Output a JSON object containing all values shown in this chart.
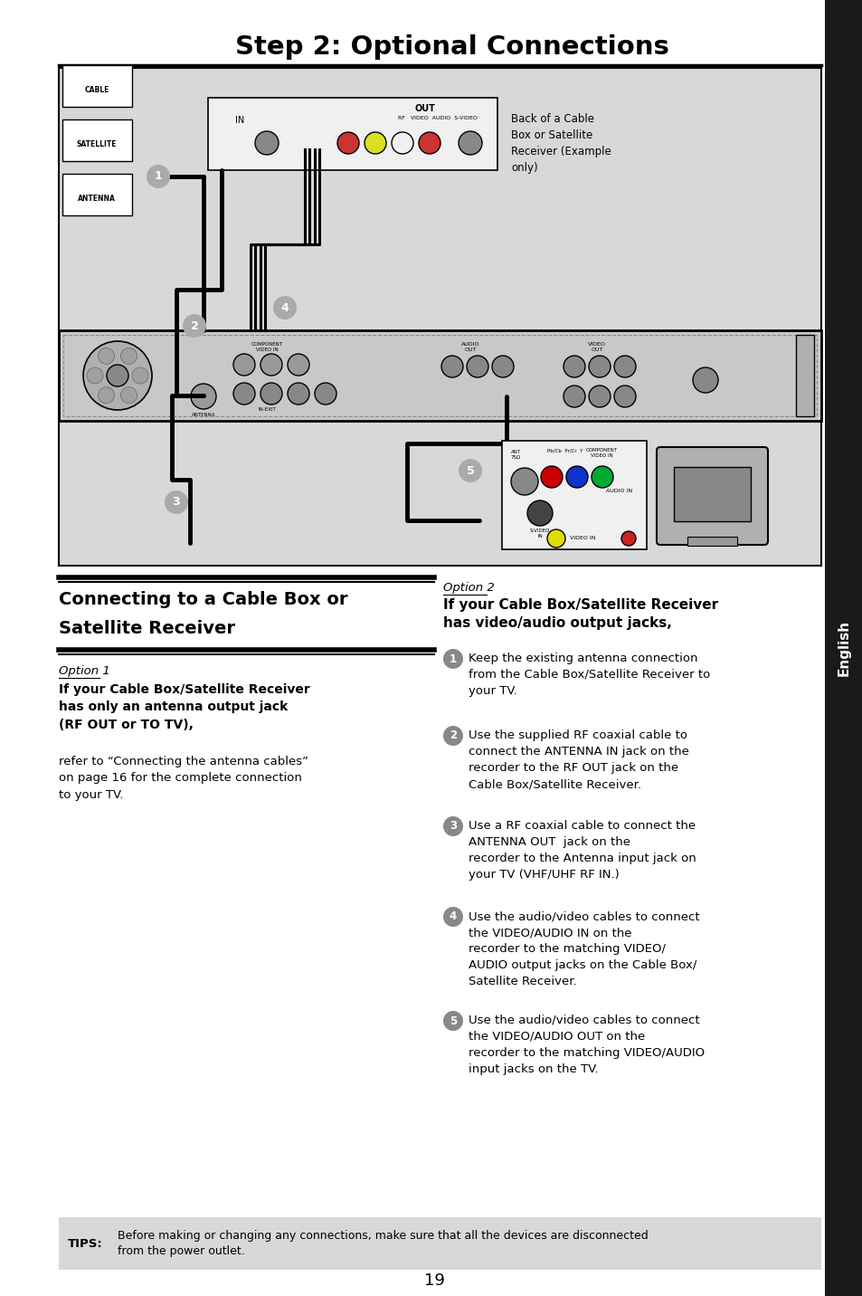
{
  "title": "Step 2: Optional Connections",
  "page_number": "19",
  "bg_color": "#ffffff",
  "diagram_bg": "#d8d8d8",
  "sidebar_text": "English",
  "sidebar_color": "#1a1a1a",
  "sidebar_text_color": "#ffffff",
  "section_title_line1": "Connecting to a Cable Box or",
  "section_title_line2": "Satellite Receiver",
  "option1_label": "Option 1",
  "option1_heading": "If your Cable Box/Satellite Receiver\nhas only an antenna output jack\n(RF OUT or TO TV),",
  "option1_body": "refer to “Connecting the antenna cables”\non page 16 for the complete connection\nto your TV.",
  "option2_label": "Option 2",
  "option2_heading_bold": "If your Cable Box/Satellite Receiver\nhas video/audio output jacks,",
  "step1_text": "Keep the existing antenna connection\nfrom the Cable Box/Satellite Receiver to\nyour TV.",
  "step2_pre": "Use the supplied RF coaxial cable to\nconnect the ",
  "step2_bold1": "ANTENNA IN",
  "step2_mid": " jack on the\nrecorder to the ",
  "step2_bold2": "RF OUT",
  "step2_post": " jack on the\nCable Box/Satellite Receiver.",
  "step3_pre": "Use a RF coaxial cable to connect the\n",
  "step3_bold1": "ANTENNA OUT",
  "step3_mid": "  jack on the\nrecorder to the ",
  "step3_bold2": "Antenna input",
  "step3_post": " jack on\nyour TV (VHF/UHF RF IN.)",
  "step4_pre": "Use the audio/video cables to connect\nthe ",
  "step4_bold1": "VIDEO/AUDIO IN",
  "step4_mid": " on the\nrecorder to the matching ",
  "step4_bold2": "VIDEO/",
  "step4_bold3": "AUDIO",
  "step4_post": " output jacks on the Cable Box/\nSatellite Receiver.",
  "step5_pre": "Use the audio/video cables to connect\nthe ",
  "step5_bold1": "VIDEO/AUDIO OUT",
  "step5_post": " on the\nrecorder to the matching VIDEO/AUDIO\ninput jacks on the TV.",
  "tips_label": "TIPS:",
  "tips_text": "Before making or changing any connections, make sure that all the devices are disconnected\nfrom the power outlet.",
  "back_label": "Back of a Cable\nBox or Satellite\nReceiver (Example\nonly)",
  "cable_box_connector_colors": [
    "#cc0000",
    "#dddd00",
    "#ffffff",
    "#cc0000",
    "#dddd00",
    "#dddd00"
  ],
  "tv_jack_colors_rgb": [
    "#cc0000",
    "#1133cc",
    "#00aa33"
  ]
}
